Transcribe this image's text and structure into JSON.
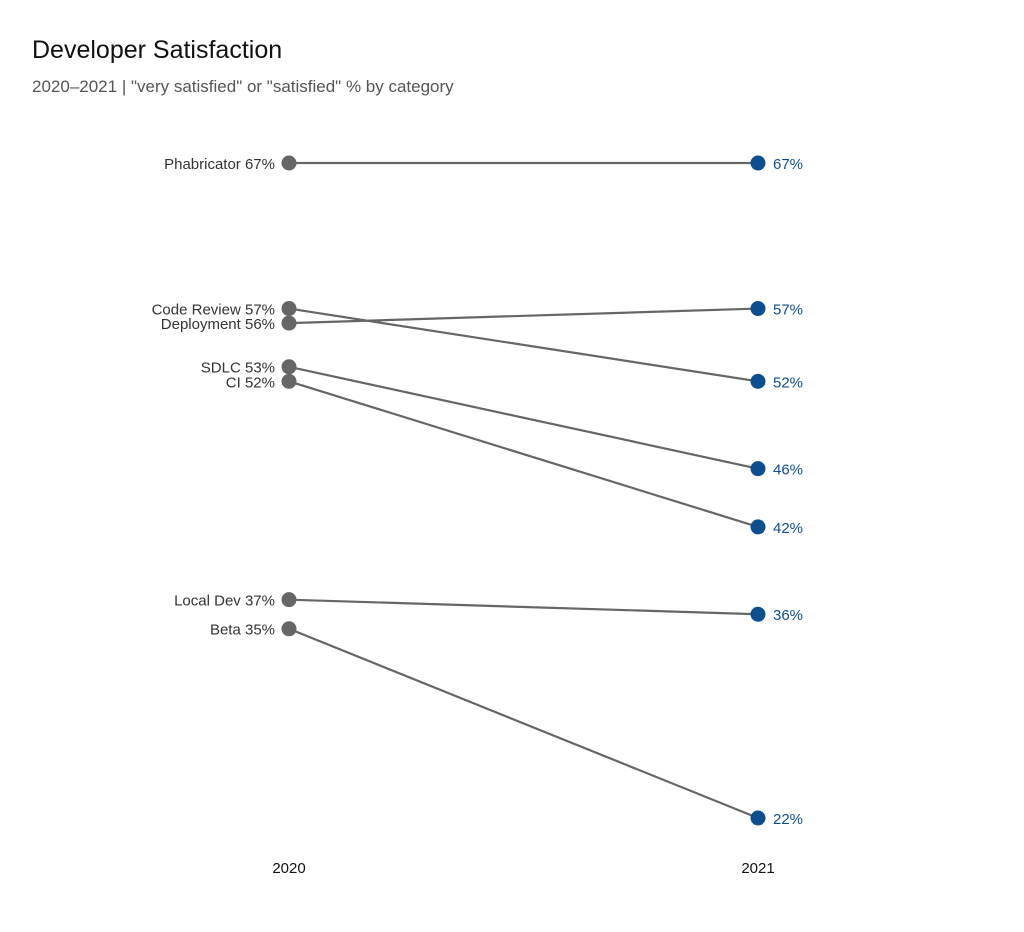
{
  "chart_data": {
    "type": "line",
    "subtype": "slope",
    "title": "Developer Satisfaction",
    "subtitle": "2020–2021 | \"very satisfied\" or \"satisfied\" % by category",
    "x": [
      "2020",
      "2021"
    ],
    "series": [
      {
        "name": "Phabricator",
        "values": [
          67,
          67
        ],
        "start_label": "Phabricator 67%",
        "end_label": "67%"
      },
      {
        "name": "Code Review",
        "values": [
          57,
          52
        ],
        "start_label": "Code Review 57%",
        "end_label": "52%"
      },
      {
        "name": "Deployment",
        "values": [
          56,
          57
        ],
        "start_label": "Deployment 56%",
        "end_label": "57%"
      },
      {
        "name": "SDLC",
        "values": [
          53,
          46
        ],
        "start_label": "SDLC 53%",
        "end_label": "46%"
      },
      {
        "name": "CI",
        "values": [
          52,
          42
        ],
        "start_label": "CI 52%",
        "end_label": "42%"
      },
      {
        "name": "Local Dev",
        "values": [
          37,
          36
        ],
        "start_label": "Local Dev 37%",
        "end_label": "36%"
      },
      {
        "name": "Beta",
        "values": [
          35,
          22
        ],
        "start_label": "Beta 35%",
        "end_label": "22%"
      }
    ],
    "ylim": [
      22,
      67
    ],
    "grid": false,
    "colors": {
      "start": "#666666",
      "end": "#0b4f8f",
      "line": "#666666"
    }
  }
}
